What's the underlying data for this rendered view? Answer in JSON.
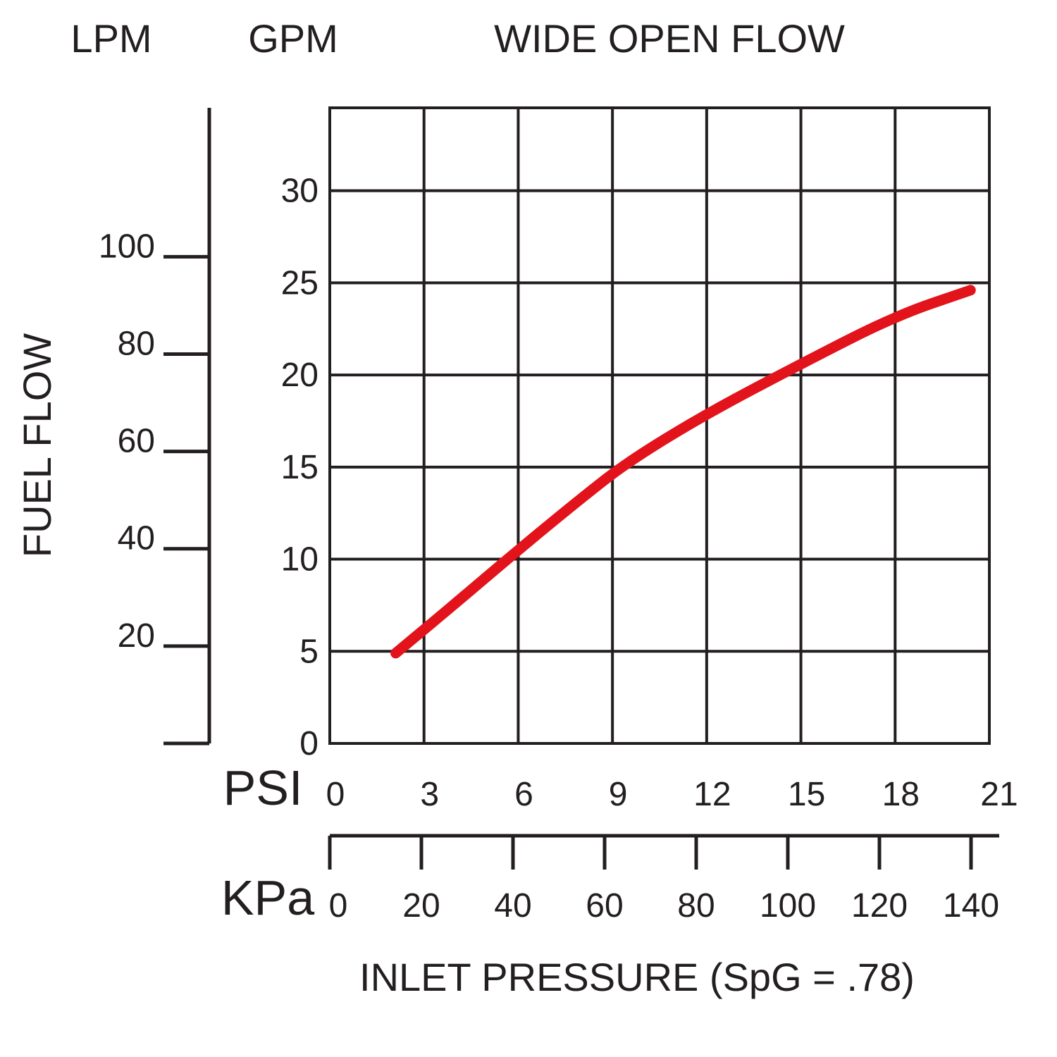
{
  "chart_data": {
    "type": "line",
    "title": "WIDE OPEN FLOW",
    "ylabel": "FUEL FLOW",
    "xlabel": "INLET PRESSURE (SpG = .78)",
    "lpm_axis": {
      "label": "LPM",
      "ticks": [
        20,
        40,
        60,
        80,
        100
      ]
    },
    "gpm_axis": {
      "label": "GPM",
      "ticks": [
        0,
        5,
        10,
        15,
        20,
        25,
        30
      ],
      "ylim": [
        0,
        34.5
      ]
    },
    "psi_axis": {
      "label": "PSI",
      "ticks": [
        0,
        3,
        6,
        9,
        12,
        15,
        18,
        21
      ],
      "xlim": [
        0,
        21
      ]
    },
    "kpa_axis": {
      "label": "KPa",
      "ticks": [
        0,
        20,
        40,
        60,
        80,
        100,
        120,
        140
      ]
    },
    "grid": true,
    "series": [
      {
        "x_unit": "PSI",
        "y_unit": "GPM",
        "color": "#e2131b",
        "points": [
          [
            2.1,
            4.9
          ],
          [
            4.0,
            7.6
          ],
          [
            6.0,
            10.5
          ],
          [
            8.0,
            13.3
          ],
          [
            9.5,
            15.3
          ],
          [
            12.0,
            17.9
          ],
          [
            15.0,
            20.6
          ],
          [
            18.0,
            23.2
          ],
          [
            20.4,
            24.6
          ]
        ]
      }
    ]
  }
}
